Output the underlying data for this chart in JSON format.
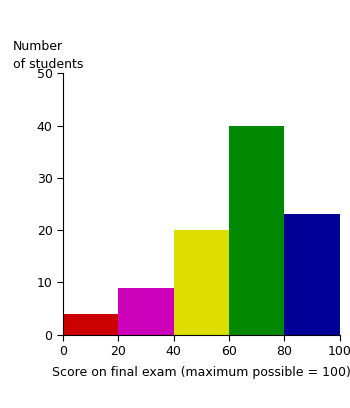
{
  "bin_edges": [
    0,
    20,
    40,
    60,
    80,
    100
  ],
  "heights": [
    4,
    9,
    20,
    40,
    23
  ],
  "bar_colors": [
    "#cc0000",
    "#cc00bb",
    "#dddd00",
    "#008800",
    "#000099"
  ],
  "xlabel": "Score on final exam (maximum possible = 100)",
  "ylabel_line1": "Number",
  "ylabel_line2": "of students",
  "xlim": [
    0,
    100
  ],
  "ylim": [
    0,
    50
  ],
  "yticks": [
    0,
    10,
    20,
    30,
    40,
    50
  ],
  "xticks": [
    0,
    20,
    40,
    60,
    80,
    100
  ],
  "background_color": "#ffffff",
  "tick_fontsize": 9,
  "label_fontsize": 9
}
